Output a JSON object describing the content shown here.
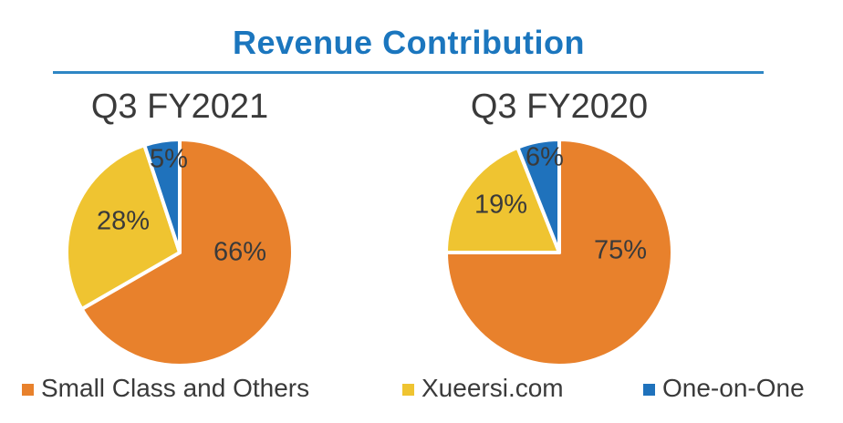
{
  "title": "Revenue Contribution",
  "colors": {
    "orange": "#E8812C",
    "yellow": "#EFC431",
    "blue": "#1F72BC",
    "title_blue": "#1B76BE",
    "rule_blue": "#2E86C4",
    "text_dark": "#3A3A3A",
    "slice_gap_white": "#FFFFFF"
  },
  "chart_data": [
    {
      "type": "pie",
      "title": "Q3 FY2021",
      "start_angle_deg": 0,
      "direction": "clockwise",
      "slices": [
        {
          "name": "Small Class and Others",
          "value": 66,
          "label": "66%",
          "color": "#E8812C"
        },
        {
          "name": "Xueersi.com",
          "value": 28,
          "label": "28%",
          "color": "#EFC431"
        },
        {
          "name": "One-on-One",
          "value": 5,
          "label": "5%",
          "color": "#1F72BC"
        }
      ]
    },
    {
      "type": "pie",
      "title": "Q3 FY2020",
      "start_angle_deg": 0,
      "direction": "clockwise",
      "slices": [
        {
          "name": "Small Class and Others",
          "value": 75,
          "label": "75%",
          "color": "#E8812C"
        },
        {
          "name": "Xueersi.com",
          "value": 19,
          "label": "19%",
          "color": "#EFC431"
        },
        {
          "name": "One-on-One",
          "value": 6,
          "label": "6%",
          "color": "#1F72BC"
        }
      ]
    }
  ],
  "legend": [
    {
      "label": "Small Class and Others",
      "color": "#E8812C"
    },
    {
      "label": "Xueersi.com",
      "color": "#EFC431"
    },
    {
      "label": "One-on-One",
      "color": "#1F72BC"
    }
  ]
}
